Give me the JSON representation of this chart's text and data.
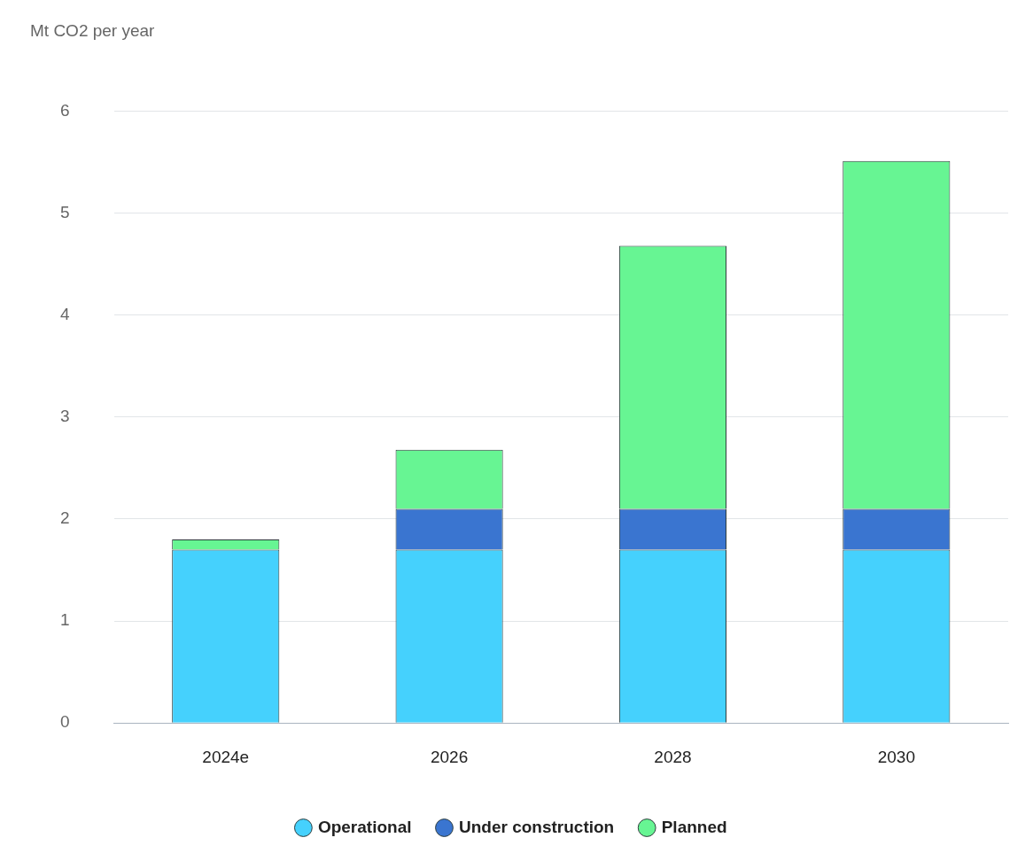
{
  "chart_data": {
    "type": "bar",
    "ylabel": "Mt CO2 per year",
    "categories": [
      "2024e",
      "2026",
      "2028",
      "2030"
    ],
    "series": [
      {
        "name": "Operational",
        "color": "#45d1fd",
        "values": [
          1.7,
          1.7,
          1.7,
          1.7
        ]
      },
      {
        "name": "Under construction",
        "color": "#3a75d0",
        "values": [
          0,
          0.4,
          0.4,
          0.4
        ]
      },
      {
        "name": "Planned",
        "color": "#67f593",
        "values": [
          0.1,
          0.58,
          2.58,
          3.41
        ]
      }
    ],
    "stacked": true,
    "ylim": [
      0,
      6
    ],
    "yticks": [
      0,
      1,
      2,
      3,
      4,
      5,
      6
    ],
    "grid": "y",
    "legend": "bottom",
    "marker": "circle"
  }
}
